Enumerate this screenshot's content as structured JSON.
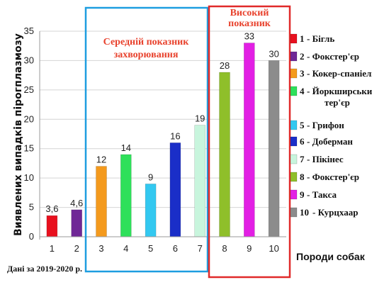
{
  "chart_data": {
    "type": "bar",
    "categories": [
      "1",
      "2",
      "3",
      "4",
      "5",
      "6",
      "7",
      "8",
      "9",
      "10"
    ],
    "values": [
      3.6,
      4.6,
      12,
      14,
      9,
      16,
      19,
      28,
      33,
      30
    ],
    "value_labels": [
      "3,6",
      "4,6",
      "12",
      "14",
      "9",
      "16",
      "19",
      "28",
      "33",
      "30"
    ],
    "colors": [
      "#e8101e",
      "#6f2796",
      "#f49a1d",
      "#2ee05a",
      "#33c8f0",
      "#1a2ec8",
      "#c8f5dd",
      "#8fbf2a",
      "#e21fe4",
      "#8c8c8c"
    ],
    "ylabel": "Виявлених випадків пірогплазмозу",
    "xlabel": "Породи собак",
    "ylim": [
      0,
      35
    ],
    "yticks": [
      "0",
      "5",
      "10",
      "15",
      "20",
      "25",
      "30",
      "35"
    ],
    "grid": true,
    "legend_position": "right",
    "legend": [
      {
        "num": "1",
        "name": "- Бігль"
      },
      {
        "num": "2",
        "name": "- Фокстер'єр"
      },
      {
        "num": "3",
        "name": "- Кокер-спаніель"
      },
      {
        "num": "4",
        "name": "- Йоркширський тер'єр"
      },
      {
        "num": "5",
        "name": "- Грифон"
      },
      {
        "num": "6",
        "name": "- Доберман"
      },
      {
        "num": "7",
        "name": "- Пікінес"
      },
      {
        "num": "8",
        "name": "- Фокстер'єр"
      },
      {
        "num": "9",
        "name": "- Такса"
      },
      {
        "num": "10",
        "name": "- Курцхаар"
      }
    ],
    "annotations": {
      "medium": [
        "Середній показник",
        "захворювання"
      ],
      "high": [
        "Високий",
        "показник"
      ],
      "medium_color": "#1e9ee0",
      "high_color": "#e02a2a"
    },
    "note": "Дані за 2019-2020 р."
  }
}
